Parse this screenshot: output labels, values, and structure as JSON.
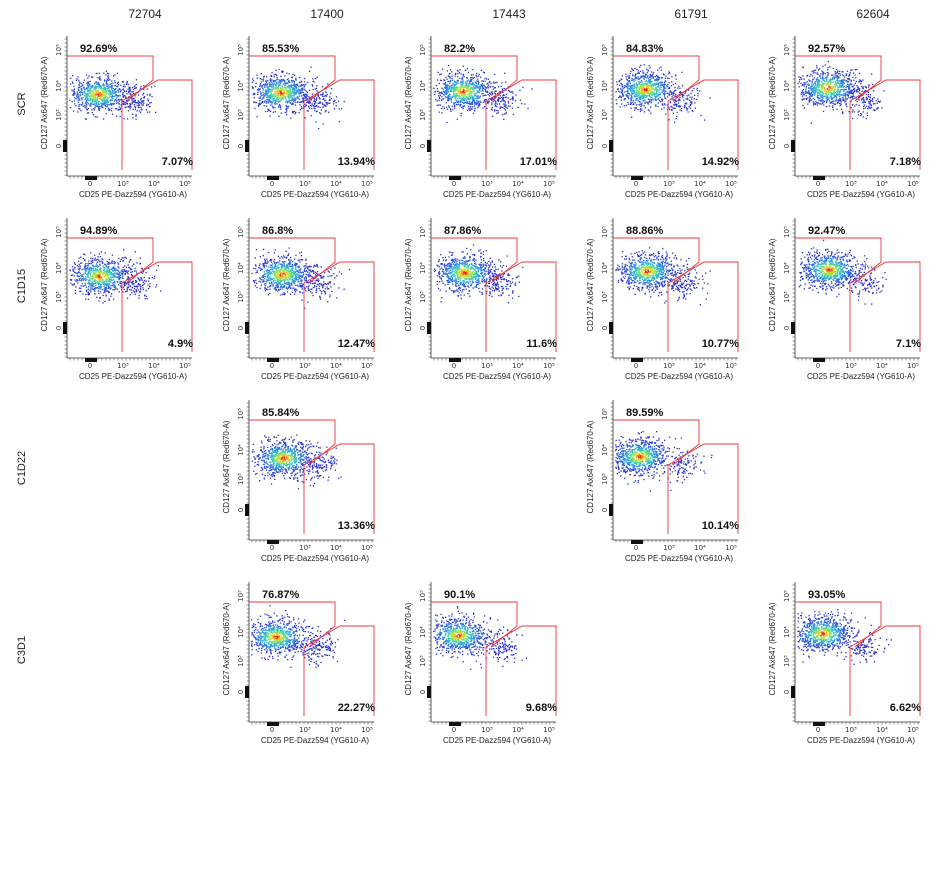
{
  "chart_data": {
    "type": "scatter",
    "columns": [
      "72704",
      "17400",
      "17443",
      "61791",
      "62604"
    ],
    "rows": [
      "SCR",
      "C1D15",
      "C1D22",
      "C3D1"
    ],
    "xlabel": "CD25 PE-Dazz594 (YG610-A)",
    "ylabel": "CD127 Ax647 (Red670-A)",
    "x_ticks": [
      "0",
      "10³",
      "10⁴",
      "10⁵"
    ],
    "y_ticks": [
      "0",
      "10³",
      "10⁴",
      "10⁵"
    ],
    "gate_color": "#e8383d",
    "panels": [
      {
        "row": "SCR",
        "column": "72704",
        "upper_gate_pct": "92.69%",
        "lower_gate_pct": "7.07%"
      },
      {
        "row": "SCR",
        "column": "17400",
        "upper_gate_pct": "85.53%",
        "lower_gate_pct": "13.94%"
      },
      {
        "row": "SCR",
        "column": "17443",
        "upper_gate_pct": "82.2%",
        "lower_gate_pct": "17.01%"
      },
      {
        "row": "SCR",
        "column": "61791",
        "upper_gate_pct": "84.83%",
        "lower_gate_pct": "14.92%"
      },
      {
        "row": "SCR",
        "column": "62604",
        "upper_gate_pct": "92.57%",
        "lower_gate_pct": "7.18%"
      },
      {
        "row": "C1D15",
        "column": "72704",
        "upper_gate_pct": "94.89%",
        "lower_gate_pct": "4.9%"
      },
      {
        "row": "C1D15",
        "column": "17400",
        "upper_gate_pct": "86.8%",
        "lower_gate_pct": "12.47%"
      },
      {
        "row": "C1D15",
        "column": "17443",
        "upper_gate_pct": "87.86%",
        "lower_gate_pct": "11.6%"
      },
      {
        "row": "C1D15",
        "column": "61791",
        "upper_gate_pct": "88.86%",
        "lower_gate_pct": "10.77%"
      },
      {
        "row": "C1D15",
        "column": "62604",
        "upper_gate_pct": "92.47%",
        "lower_gate_pct": "7.1%"
      },
      {
        "row": "C1D22",
        "column": "17400",
        "upper_gate_pct": "85.84%",
        "lower_gate_pct": "13.36%"
      },
      {
        "row": "C1D22",
        "column": "61791",
        "upper_gate_pct": "89.59%",
        "lower_gate_pct": "10.14%"
      },
      {
        "row": "C3D1",
        "column": "17400",
        "upper_gate_pct": "76.87%",
        "lower_gate_pct": "22.27%"
      },
      {
        "row": "C3D1",
        "column": "17443",
        "upper_gate_pct": "90.1%",
        "lower_gate_pct": "9.68%"
      },
      {
        "row": "C3D1",
        "column": "62604",
        "upper_gate_pct": "93.05%",
        "lower_gate_pct": "6.62%"
      }
    ]
  }
}
